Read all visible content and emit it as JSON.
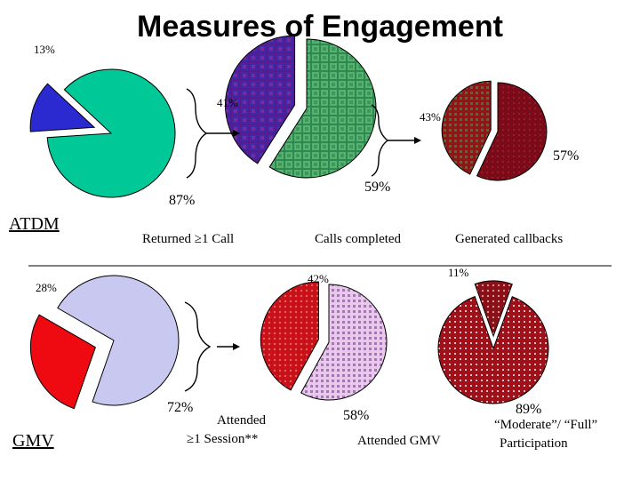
{
  "title": "Measures of Engagement",
  "colors": {
    "teal": "#00c896",
    "blue": "#2a2ad0",
    "purple": "#5a1a8c",
    "green": "#3aa060",
    "maroon": "#8a1020",
    "olive": "#4a6a20",
    "red": "#ee0a10",
    "lavender": "#c8c8f0",
    "darkred": "#a01018",
    "pinkdot": "#d8a0d0"
  },
  "chart_data": [
    {
      "type": "pie",
      "group": "ATDM",
      "caption": "",
      "slices": [
        {
          "label": "87%",
          "value": 87
        },
        {
          "label": "13%",
          "value": 13
        }
      ]
    },
    {
      "type": "pie",
      "group": "ATDM",
      "caption": "Returned ≥1 Call",
      "slices": [
        {
          "label": "59%",
          "value": 59
        },
        {
          "label": "41%",
          "value": 41
        }
      ]
    },
    {
      "type": "pie",
      "group": "ATDM",
      "caption": "Calls completed",
      "slices": [
        {
          "label": "57%",
          "value": 57
        },
        {
          "label": "43%",
          "value": 43
        }
      ]
    },
    {
      "type": "pie",
      "group": "ATDM",
      "caption": "Generated callbacks",
      "slices": []
    },
    {
      "type": "pie",
      "group": "GMV",
      "caption": "",
      "slices": [
        {
          "label": "72%",
          "value": 72
        },
        {
          "label": "28%",
          "value": 28
        }
      ]
    },
    {
      "type": "pie",
      "group": "GMV",
      "caption": "Attended ≥1 Session**",
      "slices": [
        {
          "label": "58%",
          "value": 58
        },
        {
          "label": "42%",
          "value": 42
        }
      ]
    },
    {
      "type": "pie",
      "group": "GMV",
      "caption": "Attended GMV",
      "slices": [
        {
          "label": "89%",
          "value": 89
        },
        {
          "label": "11%",
          "value": 11
        }
      ]
    },
    {
      "type": "pie",
      "group": "GMV",
      "caption": "“Moderate”/ “Full” Participation",
      "slices": []
    }
  ],
  "row_labels": {
    "top": "ATDM",
    "bottom": "GMV"
  },
  "captions": {
    "returned": "Returned ≥1 Call",
    "calls_completed": "Calls completed",
    "generated": "Generated callbacks",
    "attended_line1": "Attended",
    "attended_line2": "≥1 Session**",
    "attended_gmv": "Attended GMV",
    "moderate_line1": "“Moderate”/ “Full”",
    "moderate_line2": "Participation"
  }
}
